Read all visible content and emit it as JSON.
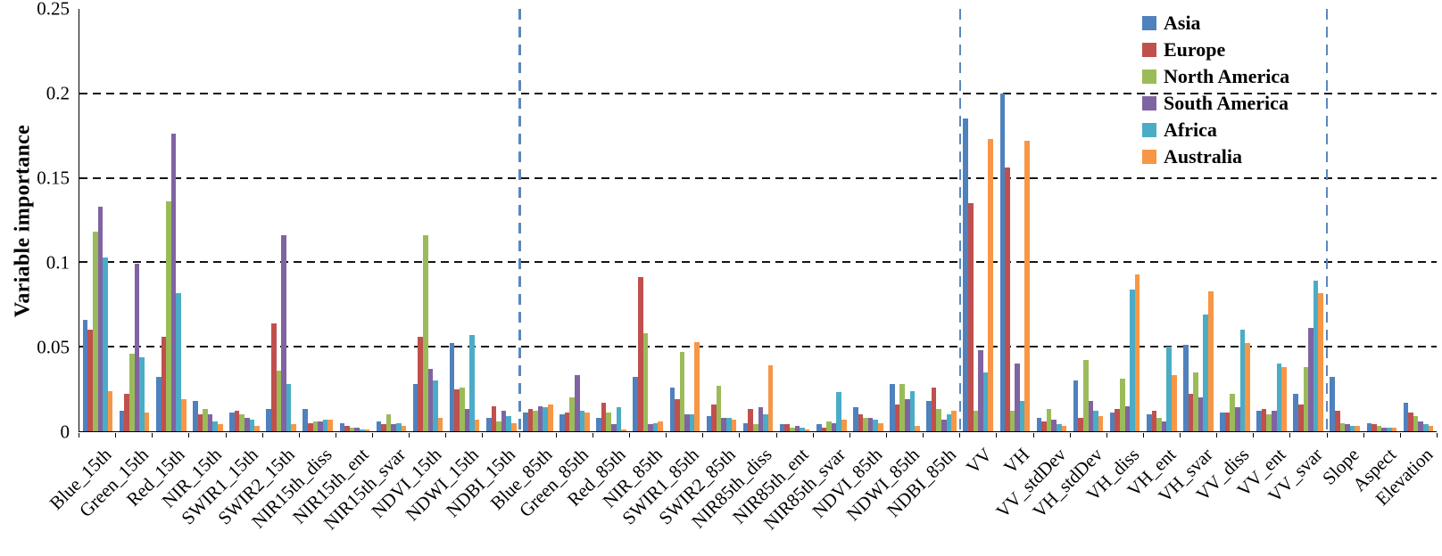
{
  "chart_data": {
    "type": "bar",
    "title": "",
    "ylabel": "Variable importance",
    "xlabel": "",
    "ylim": [
      0,
      0.25
    ],
    "grid": true,
    "grid_values": [
      0.05,
      0.1,
      0.15,
      0.2
    ],
    "yticks": [
      0,
      0.05,
      0.1,
      0.15,
      0.2,
      0.25
    ],
    "ytick_labels": [
      "0",
      "0.05",
      "0.1",
      "0.15",
      "0.2",
      "0.25"
    ],
    "legend_position": "top-right",
    "separator_color": "#5b87bd",
    "gridline_color": "#141414",
    "axis_color": "#000000",
    "separators_after": [
      "NDBI_15th",
      "NDBI_85th",
      "VV_svar"
    ],
    "categories": [
      "Blue_15th",
      "Green_15th",
      "Red_15th",
      "NIR_15th",
      "SWIR1_15th",
      "SWIR2_15th",
      "NIR15th_diss",
      "NIR15th_ent",
      "NIR15th_svar",
      "NDVI_15th",
      "NDWI_15th",
      "NDBI_15th",
      "Blue_85th",
      "Green_85th",
      "Red_85th",
      "NIR_85th",
      "SWIR1_85th",
      "SWIR2_85th",
      "NIR85th_diss",
      "NIR85th_ent",
      "NIR85th_svar",
      "NDVI_85th",
      "NDWI_85th",
      "NDBI_85th",
      "VV",
      "VH",
      "VV_stdDev",
      "VH_stdDev",
      "VH_diss",
      "VH_ent",
      "VH_svar",
      "VV_diss",
      "VV_ent",
      "VV_svar",
      "Slope",
      "Aspect",
      "Elevation"
    ],
    "series": [
      {
        "name": "Asia",
        "color": "#4F81BD",
        "values": [
          0.066,
          0.012,
          0.032,
          0.018,
          0.011,
          0.013,
          0.013,
          0.005,
          0.006,
          0.028,
          0.052,
          0.008,
          0.011,
          0.01,
          0.008,
          0.032,
          0.026,
          0.009,
          0.005,
          0.004,
          0.004,
          0.014,
          0.028,
          0.018,
          0.185,
          0.2,
          0.008,
          0.03,
          0.011,
          0.01,
          0.051,
          0.011,
          0.012,
          0.022,
          0.032,
          0.005,
          0.017
        ]
      },
      {
        "name": "Europe",
        "color": "#C0504D",
        "values": [
          0.06,
          0.022,
          0.056,
          0.01,
          0.012,
          0.064,
          0.005,
          0.003,
          0.004,
          0.056,
          0.025,
          0.015,
          0.013,
          0.011,
          0.017,
          0.091,
          0.019,
          0.016,
          0.013,
          0.004,
          0.002,
          0.01,
          0.016,
          0.026,
          0.135,
          0.156,
          0.006,
          0.008,
          0.013,
          0.012,
          0.022,
          0.011,
          0.013,
          0.016,
          0.012,
          0.004,
          0.011
        ]
      },
      {
        "name": "North America",
        "color": "#9BBB59",
        "values": [
          0.118,
          0.046,
          0.136,
          0.013,
          0.01,
          0.036,
          0.006,
          0.002,
          0.01,
          0.116,
          0.026,
          0.006,
          0.012,
          0.02,
          0.011,
          0.058,
          0.047,
          0.027,
          0.004,
          0.002,
          0.006,
          0.008,
          0.028,
          0.013,
          0.012,
          0.012,
          0.013,
          0.042,
          0.031,
          0.008,
          0.035,
          0.022,
          0.01,
          0.038,
          0.005,
          0.003,
          0.009
        ]
      },
      {
        "name": "South America",
        "color": "#8064A2",
        "values": [
          0.133,
          0.099,
          0.176,
          0.01,
          0.008,
          0.116,
          0.006,
          0.002,
          0.004,
          0.037,
          0.013,
          0.012,
          0.015,
          0.033,
          0.004,
          0.004,
          0.01,
          0.008,
          0.014,
          0.003,
          0.005,
          0.008,
          0.019,
          0.007,
          0.048,
          0.04,
          0.007,
          0.018,
          0.015,
          0.006,
          0.02,
          0.014,
          0.012,
          0.061,
          0.004,
          0.002,
          0.006
        ]
      },
      {
        "name": "Africa",
        "color": "#4BACC6",
        "values": [
          0.103,
          0.044,
          0.082,
          0.006,
          0.007,
          0.028,
          0.007,
          0.001,
          0.005,
          0.03,
          0.057,
          0.009,
          0.014,
          0.012,
          0.014,
          0.005,
          0.01,
          0.008,
          0.01,
          0.002,
          0.023,
          0.007,
          0.024,
          0.01,
          0.035,
          0.018,
          0.004,
          0.012,
          0.084,
          0.05,
          0.069,
          0.06,
          0.04,
          0.089,
          0.003,
          0.002,
          0.004
        ]
      },
      {
        "name": "Australia",
        "color": "#F79646",
        "values": [
          0.024,
          0.011,
          0.019,
          0.004,
          0.003,
          0.004,
          0.007,
          0.001,
          0.003,
          0.008,
          0.007,
          0.005,
          0.016,
          0.011,
          0.001,
          0.006,
          0.053,
          0.007,
          0.039,
          0.001,
          0.007,
          0.005,
          0.003,
          0.012,
          0.173,
          0.172,
          0.003,
          0.009,
          0.093,
          0.033,
          0.083,
          0.052,
          0.038,
          0.082,
          0.003,
          0.002,
          0.003
        ]
      }
    ]
  }
}
